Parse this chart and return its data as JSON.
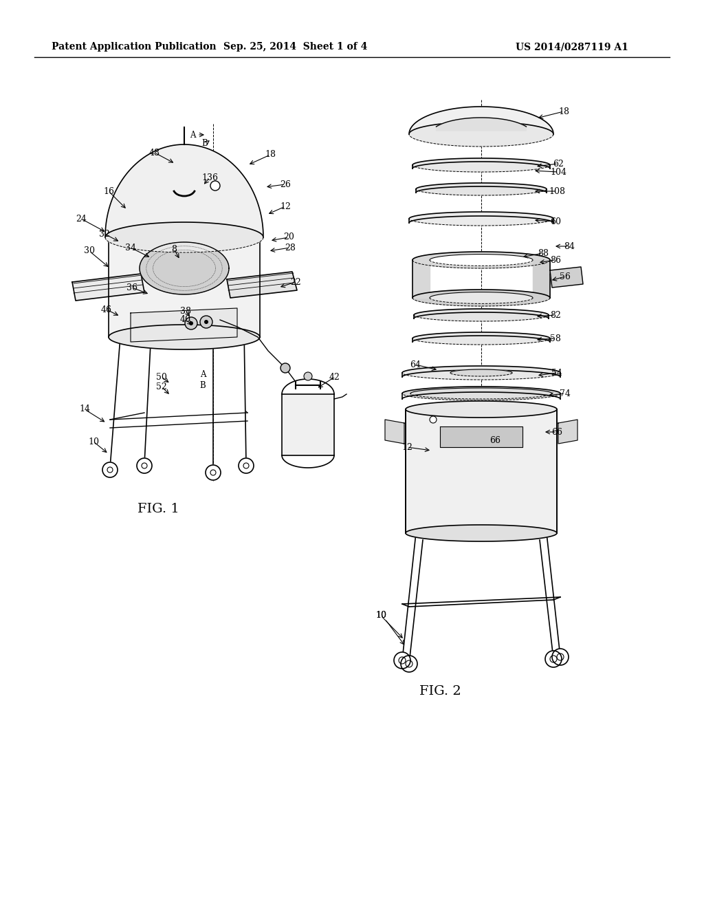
{
  "bg_color": "#ffffff",
  "header_left": "Patent Application Publication",
  "header_center": "Sep. 25, 2014  Sheet 1 of 4",
  "header_right": "US 2014/0287119 A1",
  "fig1_label": "FIG. 1",
  "fig2_label": "FIG. 2",
  "header_font_size": 10,
  "label_font_size": 14
}
